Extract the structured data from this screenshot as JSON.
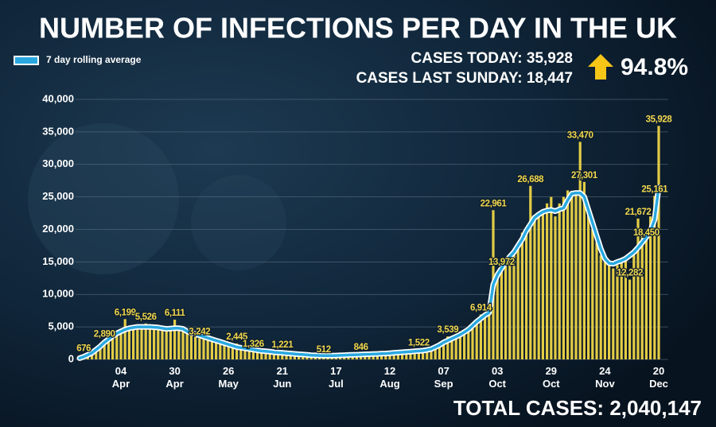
{
  "chart_data": {
    "type": "bar",
    "title": "NUMBER OF INFECTIONS PER DAY IN THE UK",
    "color": "#e3cc45",
    "categories": [
      null,
      null,
      null,
      null,
      null,
      null,
      null,
      null,
      null,
      null,
      "04 Apr",
      null,
      null,
      null,
      null,
      null,
      null,
      null,
      null,
      null,
      null,
      null,
      null,
      "30 Apr",
      null,
      null,
      null,
      null,
      null,
      null,
      null,
      null,
      null,
      null,
      null,
      null,
      "26 May",
      null,
      null,
      null,
      null,
      null,
      null,
      null,
      null,
      null,
      null,
      null,
      null,
      "21 Jun",
      null,
      null,
      null,
      null,
      null,
      null,
      null,
      null,
      null,
      null,
      null,
      null,
      "17 Jul",
      null,
      null,
      null,
      null,
      null,
      null,
      null,
      null,
      null,
      null,
      null,
      null,
      "12 Aug",
      null,
      null,
      null,
      null,
      null,
      null,
      null,
      null,
      null,
      null,
      null,
      null,
      "07 Sep",
      null,
      null,
      null,
      null,
      null,
      null,
      null,
      null,
      null,
      null,
      null,
      null,
      "03 Oct",
      null,
      null,
      null,
      null,
      null,
      null,
      null,
      null,
      null,
      null,
      null,
      null,
      "29 Oct",
      null,
      null,
      null,
      null,
      null,
      null,
      null,
      null,
      null,
      null,
      null,
      null,
      "24 Nov",
      null,
      null,
      null,
      null,
      null,
      null,
      null,
      null,
      null,
      null,
      null,
      null,
      "20 Dec"
    ],
    "values": [
      300,
      676,
      800,
      1000,
      1300,
      2000,
      2890,
      3000,
      3700,
      4300,
      4500,
      6199,
      4800,
      5000,
      5100,
      4900,
      5526,
      4800,
      5000,
      4700,
      4600,
      4800,
      5000,
      6111,
      4500,
      4600,
      4200,
      4000,
      3800,
      3242,
      3400,
      3100,
      3000,
      2800,
      2600,
      2400,
      2200,
      2100,
      2445,
      1700,
      1600,
      1500,
      1326,
      1300,
      1250,
      1200,
      1150,
      1100,
      1000,
      1221,
      900,
      850,
      800,
      750,
      700,
      650,
      620,
      600,
      580,
      512,
      600,
      580,
      620,
      650,
      680,
      700,
      720,
      750,
      846,
      780,
      800,
      830,
      870,
      900,
      920,
      980,
      1050,
      1080,
      1150,
      1200,
      1250,
      1300,
      1522,
      1400,
      1500,
      1700,
      2000,
      2400,
      2800,
      3539,
      3400,
      3900,
      4300,
      4400,
      5000,
      5500,
      6100,
      6914,
      7000,
      7500,
      22961,
      12500,
      13972,
      15000,
      16000,
      17000,
      18000,
      19500,
      20000,
      26688,
      21500,
      22000,
      23000,
      24000,
      25000,
      22000,
      24000,
      25000,
      26000,
      25500,
      25500,
      33470,
      27301,
      23000,
      20000,
      18000,
      16000,
      15000,
      14500,
      14000,
      14500,
      15000,
      15500,
      12282,
      16500,
      21672,
      20000,
      18450,
      22000,
      25161,
      35928
    ],
    "value_labels": [
      null,
      "676",
      null,
      null,
      null,
      null,
      "2,890",
      null,
      null,
      null,
      null,
      "6,199",
      null,
      null,
      null,
      null,
      "5,526",
      null,
      null,
      null,
      null,
      null,
      null,
      "6,111",
      null,
      null,
      null,
      null,
      null,
      "3,242",
      null,
      null,
      null,
      null,
      null,
      null,
      null,
      null,
      "2,445",
      null,
      null,
      null,
      "1,326",
      null,
      null,
      null,
      null,
      null,
      null,
      "1,221",
      null,
      null,
      null,
      null,
      null,
      null,
      null,
      null,
      null,
      "512",
      null,
      null,
      null,
      null,
      null,
      null,
      null,
      null,
      "846",
      null,
      null,
      null,
      null,
      null,
      null,
      null,
      null,
      null,
      null,
      null,
      null,
      null,
      "1,522",
      null,
      null,
      null,
      null,
      null,
      null,
      "3,539",
      null,
      null,
      null,
      null,
      null,
      null,
      null,
      "6,914",
      null,
      null,
      "22,961",
      null,
      "13,972",
      null,
      null,
      null,
      null,
      null,
      null,
      "26,688",
      null,
      null,
      null,
      null,
      null,
      null,
      null,
      null,
      null,
      null,
      null,
      "33,470",
      "27,301",
      null,
      null,
      null,
      null,
      null,
      null,
      null,
      null,
      null,
      null,
      "12,282",
      null,
      "21,672",
      null,
      "18,450",
      null,
      "25,161",
      "35,928"
    ],
    "series": [
      {
        "name": "7 day rolling average",
        "type": "line",
        "color": "#29a8df",
        "values": [
          200,
          400,
          700,
          1000,
          1500,
          2000,
          2600,
          3100,
          3600,
          4000,
          4300,
          4600,
          4800,
          4900,
          5000,
          5000,
          5000,
          5000,
          4950,
          4900,
          4800,
          4700,
          4750,
          4800,
          4800,
          4700,
          4300,
          4100,
          3900,
          3700,
          3500,
          3300,
          3100,
          2900,
          2700,
          2500,
          2300,
          2100,
          1900,
          1800,
          1700,
          1600,
          1500,
          1400,
          1300,
          1250,
          1200,
          1100,
          1050,
          1000,
          950,
          900,
          850,
          800,
          750,
          700,
          650,
          620,
          600,
          580,
          580,
          590,
          600,
          620,
          650,
          680,
          700,
          720,
          750,
          780,
          800,
          820,
          850,
          880,
          900,
          950,
          1000,
          1050,
          1100,
          1150,
          1200,
          1250,
          1300,
          1350,
          1450,
          1600,
          1900,
          2200,
          2600,
          2900,
          3200,
          3500,
          3800,
          4200,
          4600,
          5200,
          5800,
          6300,
          6800,
          7200,
          11500,
          13000,
          14000,
          15000,
          15800,
          16500,
          17500,
          18500,
          19800,
          20800,
          21800,
          22300,
          22700,
          22900,
          23000,
          22800,
          23100,
          23300,
          24500,
          25500,
          25600,
          25600,
          25000,
          23000,
          21000,
          19000,
          17000,
          15500,
          14800,
          14700,
          15000,
          15200,
          15500,
          16000,
          16500,
          17200,
          18000,
          18800,
          19800,
          21500,
          26500
        ]
      }
    ],
    "ylim": [
      0,
      40000
    ],
    "yticks": [
      0,
      {
        "value": 5000,
        "label": "5,000"
      },
      {
        "value": 10000,
        "label": "10,000"
      },
      {
        "value": 15000,
        "label": "15,000"
      },
      {
        "value": 20000,
        "label": "20,000"
      },
      {
        "value": 25000,
        "label": "25,000"
      },
      {
        "value": 30000,
        "label": "30,000"
      },
      {
        "value": 35000,
        "label": "35,000"
      },
      {
        "value": 40000,
        "label": "40,000"
      }
    ],
    "grid": true,
    "legend": "top-left"
  },
  "stats": {
    "cases_today_label": "CASES TODAY:",
    "cases_today": "35,928",
    "cases_last_sunday_label": "CASES LAST SUNDAY:",
    "cases_last_sunday": "18,447",
    "change": "94.8%",
    "total_label": "TOTAL CASES:",
    "total": "2,040,147"
  }
}
